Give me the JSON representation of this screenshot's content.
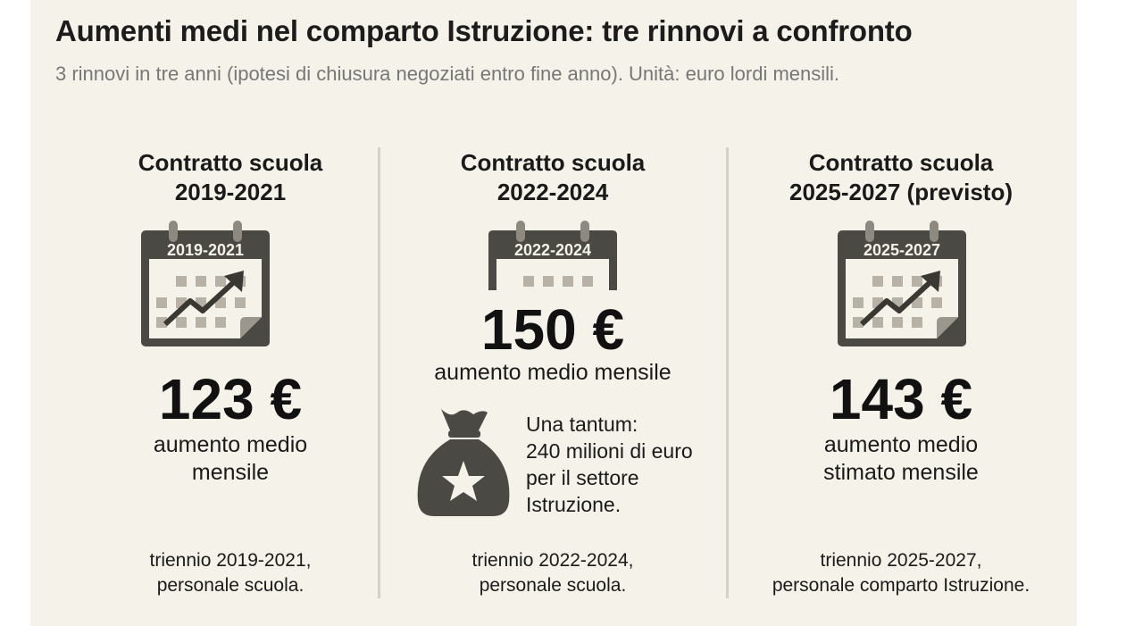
{
  "header": {
    "title": "Aumenti medi nel comparto Istruzione: tre rinnovi a confronto",
    "subtitle": "3 rinnovi in tre anni (ipotesi di chiusura negoziati entro fine anno). Unità: euro lordi mensili."
  },
  "columns": [
    {
      "heading_line1": "Contratto scuola",
      "heading_line2": "2019-2021",
      "calendar_label": "2019-2021",
      "icon": "calendar-trend-up-icon",
      "amount": "123 €",
      "desc_line1": "aumento medio",
      "desc_line2": "mensile",
      "foot_line1": "triennio 2019-2021,",
      "foot_line2": "personale scuola."
    },
    {
      "heading_line1": "Contratto scuola",
      "heading_line2": "2022-2024",
      "calendar_label": "2022-2024",
      "icon": "calendar-icon",
      "amount": "150 €",
      "desc_line1": "aumento medio mensile",
      "tantum_line1": "Una tantum:",
      "tantum_line2": "240 milioni di euro",
      "tantum_line3": "per il settore",
      "tantum_line4": "Istruzione.",
      "tantum_icon": "money-bag-star-icon",
      "foot_line1": "triennio 2022-2024,",
      "foot_line2": "personale scuola."
    },
    {
      "heading_line1": "Contratto scuola",
      "heading_line2": "2025-2027 (previsto)",
      "calendar_label": "2025-2027",
      "icon": "calendar-trend-up-icon",
      "amount": "143 €",
      "desc_line1": "aumento medio",
      "desc_line2": "stimato mensile",
      "foot_line1": "triennio 2025-2027,",
      "foot_line2": "personale comparto Istruzione."
    }
  ],
  "colors": {
    "background": "#f5f2e9",
    "icon_dark": "#4b4943",
    "icon_light": "#b8b2a6",
    "divider": "#d7d1c4",
    "subtitle": "#777777"
  }
}
